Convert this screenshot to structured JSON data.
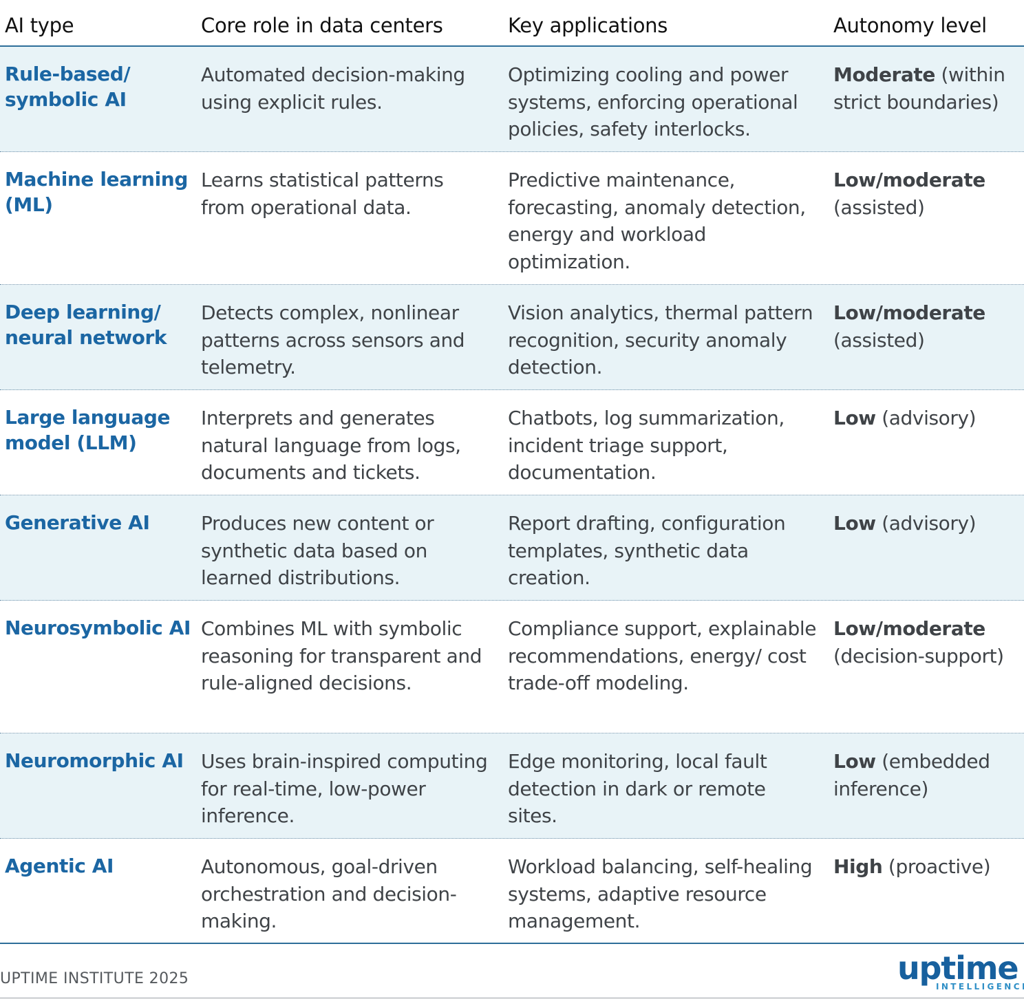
{
  "header": {
    "col_type": "AI type",
    "col_role": "Core role in data centers",
    "col_apps": "Key applications",
    "col_autonomy": "Autonomy level"
  },
  "rows": [
    {
      "type": "Rule-based/ symbolic AI",
      "role": "Automated decision-making using explicit rules.",
      "apps": "Optimizing cooling and power systems, enforcing operational policies, safety interlocks.",
      "autonomy_level": "Moderate",
      "autonomy_note": " (within strict boundaries)"
    },
    {
      "type": "Machine learning (ML)",
      "role": "Learns statistical patterns from operational data.",
      "apps": "Predictive maintenance, forecasting, anomaly detection, energy and workload optimization.",
      "autonomy_level": "Low/moderate",
      "autonomy_note": " (assisted)"
    },
    {
      "type": "Deep learning/ neural network",
      "role": "Detects complex, nonlinear patterns across sensors and telemetry.",
      "apps": "Vision analytics, thermal pattern recognition, security anomaly detection.",
      "autonomy_level": "Low/moderate",
      "autonomy_note": " (assisted)"
    },
    {
      "type": "Large language model (LLM)",
      "role": "Interprets and generates natural language from logs, documents and tickets.",
      "apps": "Chatbots, log summarization, incident triage support, documentation.",
      "autonomy_level": "Low",
      "autonomy_note": " (advisory)"
    },
    {
      "type": "Generative AI",
      "role": "Produces new content or synthetic data based on learned distributions.",
      "apps": "Report drafting, configuration templates, synthetic data creation.",
      "autonomy_level": "Low",
      "autonomy_note": " (advisory)"
    },
    {
      "type": "Neurosymbolic AI",
      "role": "Combines ML with symbolic reasoning for transparent and rule-aligned decisions.",
      "apps": "Compliance support, explainable recommendations, energy/ cost trade-off modeling.",
      "autonomy_level": "Low/moderate",
      "autonomy_note": " (decision-support)"
    },
    {
      "type": "Neuromorphic AI",
      "role": "Uses brain-inspired computing for real-time, low-power inference.",
      "apps": "Edge monitoring, local fault detection in dark or remote sites.",
      "autonomy_level": "Low",
      "autonomy_note": " (embedded inference)"
    },
    {
      "type": "Agentic AI",
      "role": "Autonomous, goal-driven orchestration and decision-making.",
      "apps": "Workload balancing, self-healing systems, adaptive resource management.",
      "autonomy_level": "High",
      "autonomy_note": " (proactive)"
    }
  ],
  "footer": {
    "credit": "UPTIME INSTITUTE 2025",
    "logo_word": "uptime",
    "logo_sub": "INTELLIGENCE"
  },
  "colors": {
    "accent_blue": "#1b66a3",
    "row_shade": "#e8f3f7",
    "rule_blue": "#2d6e99"
  }
}
